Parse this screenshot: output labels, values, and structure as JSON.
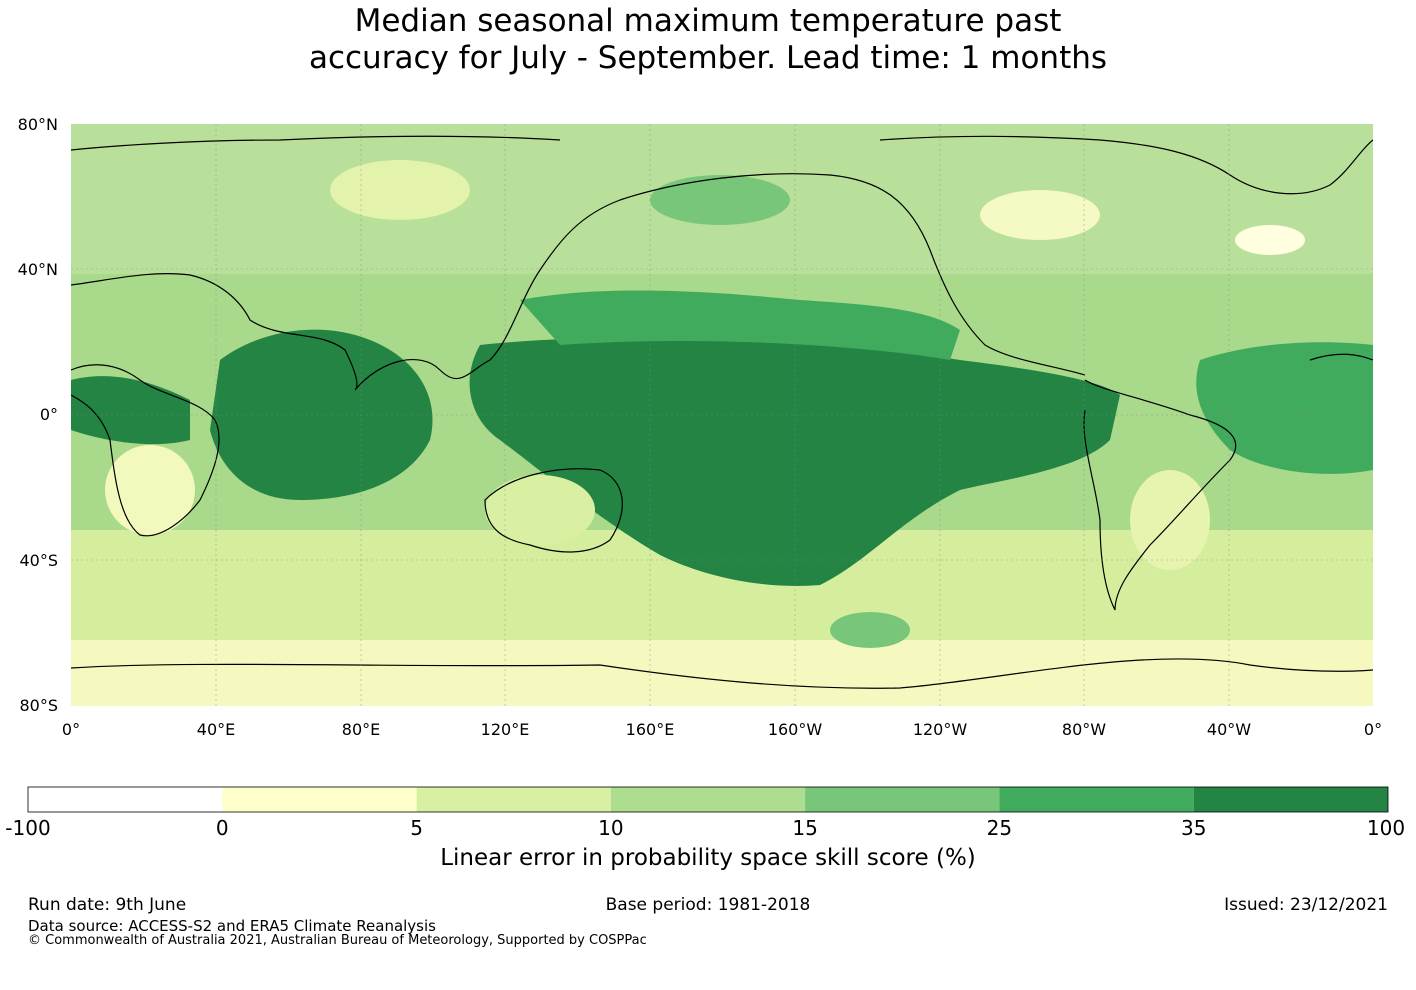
{
  "title_line1": "Median seasonal maximum temperature past",
  "title_line2": "accuracy for July - September. Lead time: 1 months",
  "map": {
    "lat_ticks": [
      "80°N",
      "40°N",
      "0°",
      "40°S",
      "80°S"
    ],
    "lon_ticks": [
      "0°",
      "40°E",
      "80°E",
      "120°E",
      "160°E",
      "160°W",
      "120°W",
      "80°W",
      "40°W",
      "0°"
    ]
  },
  "colorbar": {
    "boundaries": [
      "-100",
      "0",
      "5",
      "10",
      "15",
      "25",
      "35",
      "100"
    ],
    "colors": [
      "#ffffff",
      "#ffffcc",
      "#d9f0a3",
      "#addd8e",
      "#78c679",
      "#41ab5d",
      "#238443"
    ],
    "label": "Linear error in probability space skill score (%)"
  },
  "footer": {
    "run_date": "Run date: 9th June",
    "base_period": "Base period: 1981-2018",
    "issued": "Issued: 23/12/2021",
    "data_source": "Data source: ACCESS-S2 and ERA5 Climate Reanalysis",
    "copyright": "© Commonwealth of Australia 2021, Australian Bureau of Meteorology, Supported by COSPPac"
  }
}
